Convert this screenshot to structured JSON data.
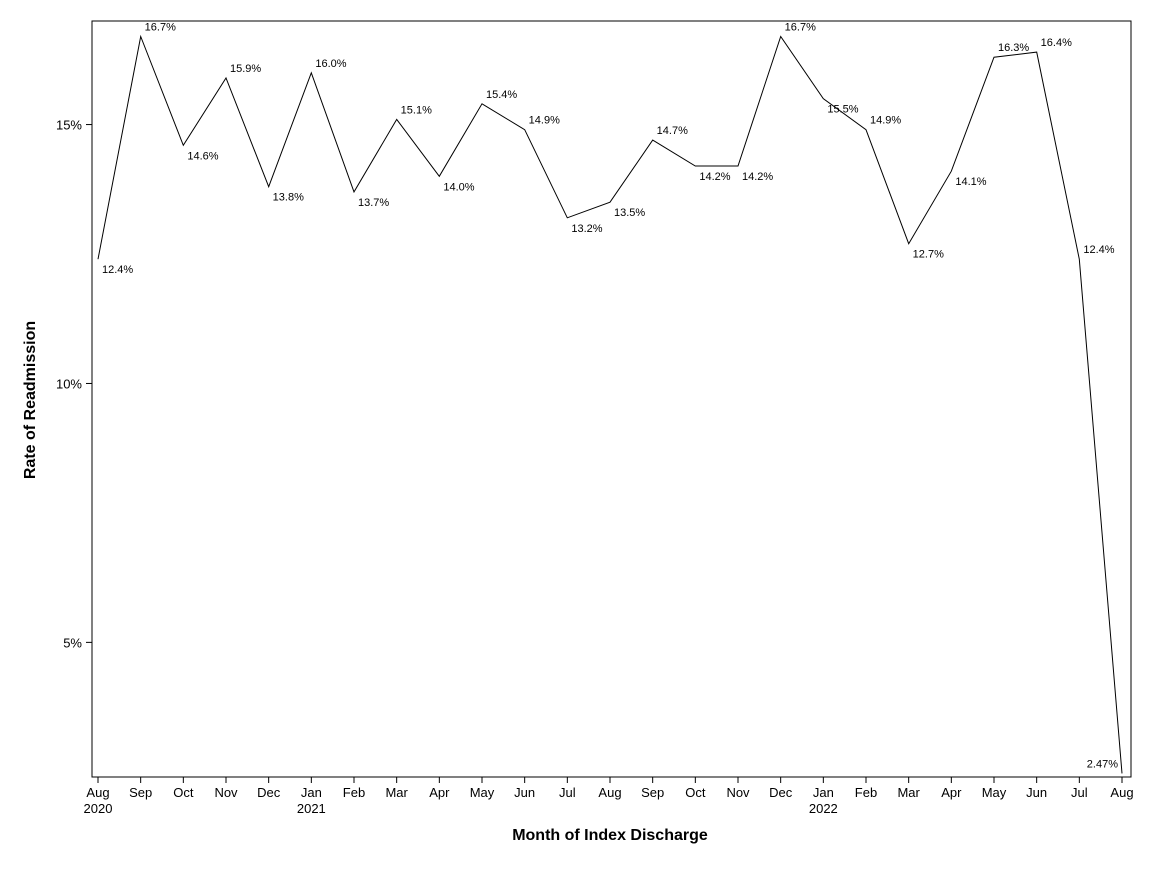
{
  "chart_data": {
    "type": "line",
    "title": "",
    "xlabel": "Month of Index Discharge",
    "ylabel": "Rate of Readmission",
    "ylim": [
      2.4,
      17.0
    ],
    "yticks": [
      {
        "value": 5,
        "label": "5%"
      },
      {
        "value": 10,
        "label": "10%"
      },
      {
        "value": 15,
        "label": "15%"
      }
    ],
    "grid": false,
    "legend": "none",
    "line_color": "#000000",
    "months": [
      "Aug",
      "Sep",
      "Oct",
      "Nov",
      "Dec",
      "Jan",
      "Feb",
      "Mar",
      "Apr",
      "May",
      "Jun",
      "Jul",
      "Aug",
      "Sep",
      "Oct",
      "Nov",
      "Dec",
      "Jan",
      "Feb",
      "Mar",
      "Apr",
      "May",
      "Jun",
      "Jul",
      "Aug"
    ],
    "years": [
      {
        "index": 0,
        "label": "2020"
      },
      {
        "index": 5,
        "label": "2021"
      },
      {
        "index": 17,
        "label": "2022"
      }
    ],
    "values": [
      12.4,
      16.7,
      14.6,
      15.9,
      13.8,
      16.0,
      13.7,
      15.1,
      14.0,
      15.4,
      14.9,
      13.2,
      13.5,
      14.7,
      14.2,
      14.2,
      16.7,
      15.5,
      14.9,
      12.7,
      14.1,
      16.3,
      16.4,
      12.4,
      2.47
    ],
    "value_labels": [
      "12.4%",
      "16.7%",
      "14.6%",
      "15.9%",
      "13.8%",
      "16.0%",
      "13.7%",
      "15.1%",
      "14.0%",
      "15.4%",
      "14.9%",
      "13.2%",
      "13.5%",
      "14.7%",
      "14.2%",
      "14.2%",
      "16.7%",
      "15.5%",
      "14.9%",
      "12.7%",
      "14.1%",
      "16.3%",
      "16.4%",
      "12.4%",
      "2.47%"
    ]
  }
}
